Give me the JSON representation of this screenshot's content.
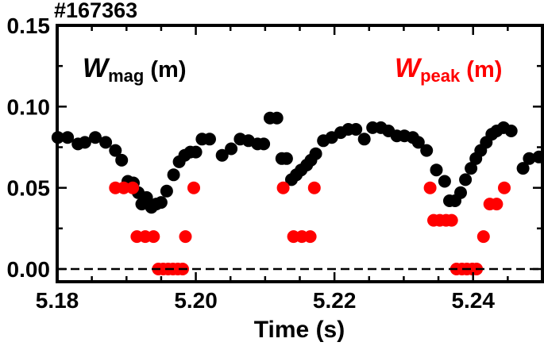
{
  "chart_data": {
    "type": "scatter",
    "shot_label": "#167363",
    "xlabel": "Time (s)",
    "ylabel": "",
    "xlim": [
      5.18,
      5.25
    ],
    "ylim": [
      0.0,
      0.15
    ],
    "x_ticks": [
      5.18,
      5.2,
      5.22,
      5.24
    ],
    "x_tick_labels": [
      "5.18",
      "5.20",
      "5.22",
      "5.24"
    ],
    "y_ticks": [
      0.0,
      0.05,
      0.1,
      0.15
    ],
    "y_tick_labels": [
      "0.00",
      "0.05",
      "0.10",
      "0.15"
    ],
    "reference_line": {
      "y": 0.0,
      "style": "dashed"
    },
    "grid": false,
    "series": [
      {
        "name": "W_mag (m)",
        "legend": {
          "main": "W",
          "sub": "mag",
          "unit": " (m)"
        },
        "color": "#000000",
        "points": [
          [
            5.1801,
            0.081
          ],
          [
            5.1815,
            0.081
          ],
          [
            5.183,
            0.077
          ],
          [
            5.184,
            0.078
          ],
          [
            5.1855,
            0.081
          ],
          [
            5.187,
            0.078
          ],
          [
            5.1884,
            0.073
          ],
          [
            5.1893,
            0.067
          ],
          [
            5.1902,
            0.054
          ],
          [
            5.191,
            0.053
          ],
          [
            5.1917,
            0.047
          ],
          [
            5.1922,
            0.04
          ],
          [
            5.1929,
            0.044
          ],
          [
            5.1936,
            0.038
          ],
          [
            5.1943,
            0.04
          ],
          [
            5.195,
            0.041
          ],
          [
            5.1958,
            0.048
          ],
          [
            5.1968,
            0.058
          ],
          [
            5.1976,
            0.066
          ],
          [
            5.1984,
            0.07
          ],
          [
            5.1992,
            0.072
          ],
          [
            5.2,
            0.072
          ],
          [
            5.2009,
            0.08
          ],
          [
            5.202,
            0.08
          ],
          [
            5.2038,
            0.07
          ],
          [
            5.2051,
            0.074
          ],
          [
            5.2064,
            0.08
          ],
          [
            5.2076,
            0.079
          ],
          [
            5.2089,
            0.077
          ],
          [
            5.2098,
            0.077
          ],
          [
            5.2107,
            0.093
          ],
          [
            5.2117,
            0.093
          ],
          [
            5.2124,
            0.068
          ],
          [
            5.2131,
            0.068
          ],
          [
            5.2138,
            0.055
          ],
          [
            5.2145,
            0.058
          ],
          [
            5.2152,
            0.061
          ],
          [
            5.216,
            0.064
          ],
          [
            5.2166,
            0.067
          ],
          [
            5.2173,
            0.071
          ],
          [
            5.2184,
            0.079
          ],
          [
            5.2196,
            0.081
          ],
          [
            5.2209,
            0.084
          ],
          [
            5.222,
            0.086
          ],
          [
            5.2231,
            0.086
          ],
          [
            5.2243,
            0.08
          ],
          [
            5.2255,
            0.087
          ],
          [
            5.2267,
            0.087
          ],
          [
            5.2278,
            0.085
          ],
          [
            5.229,
            0.082
          ],
          [
            5.2301,
            0.082
          ],
          [
            5.2313,
            0.081
          ],
          [
            5.2321,
            0.078
          ],
          [
            5.2333,
            0.073
          ],
          [
            5.2347,
            0.061
          ],
          [
            5.2359,
            0.054
          ],
          [
            5.2366,
            0.042
          ],
          [
            5.2374,
            0.042
          ],
          [
            5.2382,
            0.047
          ],
          [
            5.2389,
            0.055
          ],
          [
            5.2397,
            0.062
          ],
          [
            5.2404,
            0.068
          ],
          [
            5.2411,
            0.073
          ],
          [
            5.2419,
            0.078
          ],
          [
            5.2427,
            0.083
          ],
          [
            5.2434,
            0.085
          ],
          [
            5.2444,
            0.087
          ],
          [
            5.2455,
            0.085
          ],
          [
            5.2472,
            0.062
          ],
          [
            5.2481,
            0.068
          ],
          [
            5.2495,
            0.069
          ]
        ]
      },
      {
        "name": "W_peak (m)",
        "legend": {
          "main": "W",
          "sub": "peak",
          "unit": " (m)"
        },
        "color": "#ff0000",
        "points": [
          [
            5.1884,
            0.05
          ],
          [
            5.1896,
            0.05
          ],
          [
            5.1909,
            0.05
          ],
          [
            5.1915,
            0.02
          ],
          [
            5.1927,
            0.02
          ],
          [
            5.1939,
            0.02
          ],
          [
            5.1946,
            0.0
          ],
          [
            5.1953,
            0.0
          ],
          [
            5.196,
            0.0
          ],
          [
            5.1967,
            0.0
          ],
          [
            5.1974,
            0.0
          ],
          [
            5.1981,
            0.0
          ],
          [
            5.1985,
            0.02
          ],
          [
            5.1997,
            0.05
          ],
          [
            5.2126,
            0.05
          ],
          [
            5.2141,
            0.02
          ],
          [
            5.2153,
            0.02
          ],
          [
            5.2165,
            0.02
          ],
          [
            5.2171,
            0.05
          ],
          [
            5.2338,
            0.05
          ],
          [
            5.2343,
            0.03
          ],
          [
            5.2352,
            0.03
          ],
          [
            5.2361,
            0.03
          ],
          [
            5.2369,
            0.03
          ],
          [
            5.2376,
            0.0
          ],
          [
            5.2384,
            0.0
          ],
          [
            5.2391,
            0.0
          ],
          [
            5.2399,
            0.0
          ],
          [
            5.2405,
            0.0
          ],
          [
            5.2415,
            0.02
          ],
          [
            5.2424,
            0.04
          ],
          [
            5.2434,
            0.04
          ],
          [
            5.2445,
            0.05
          ]
        ]
      }
    ]
  }
}
